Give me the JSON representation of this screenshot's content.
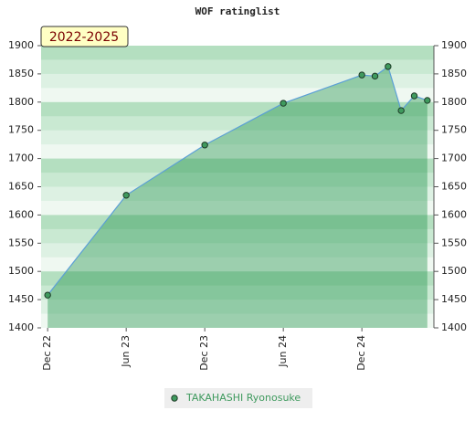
{
  "chart_data": {
    "type": "area",
    "title": "WOF ratinglist",
    "annotation": "2022-2025",
    "x": [
      0,
      6,
      12,
      18,
      24,
      25,
      26,
      27,
      28,
      29
    ],
    "xlim": [
      -0.5,
      29.5
    ],
    "xticks": [
      {
        "value": 0,
        "label": "Dec 22"
      },
      {
        "value": 6,
        "label": "Jun 23"
      },
      {
        "value": 12,
        "label": "Dec 23"
      },
      {
        "value": 18,
        "label": "Jun 24"
      },
      {
        "value": 24,
        "label": "Dec 24"
      }
    ],
    "ylim": [
      1400,
      1900
    ],
    "yticks": [
      1400,
      1450,
      1500,
      1550,
      1600,
      1650,
      1700,
      1750,
      1800,
      1850,
      1900
    ],
    "y2lim": [
      1400,
      1900
    ],
    "y2ticks": [
      1400,
      1450,
      1500,
      1550,
      1600,
      1650,
      1700,
      1750,
      1800,
      1850,
      1900
    ],
    "series": [
      {
        "name": "TAKAHASHI Ryonosuke",
        "color": "#5b9fd6",
        "marker_color": "#3f9a5e",
        "values": [
          1458,
          1635,
          1724,
          1798,
          1848,
          1846,
          1863,
          1785,
          1811,
          1803
        ]
      }
    ]
  }
}
